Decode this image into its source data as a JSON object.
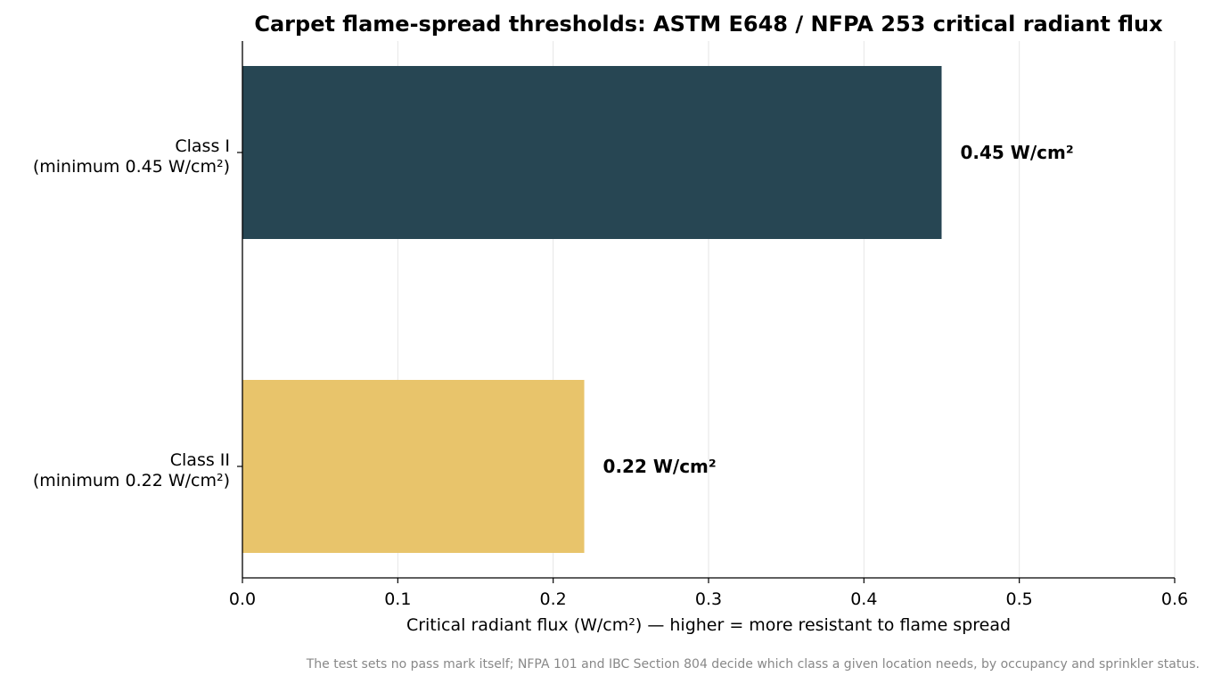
{
  "chart_data": {
    "type": "bar",
    "orientation": "horizontal",
    "title": "Carpet flame-spread thresholds: ASTM E648 / NFPA 253 critical radiant flux",
    "xlabel": "Critical radiant flux (W/cm²)  —  higher = more resistant to flame spread",
    "ylabel": "",
    "xlim": [
      0,
      0.6
    ],
    "xticks": [
      "0.0",
      "0.1",
      "0.2",
      "0.3",
      "0.4",
      "0.5",
      "0.6"
    ],
    "grid": "vertical",
    "categories": [
      [
        "Class I",
        "(minimum 0.45 W/cm²)"
      ],
      [
        "Class II",
        "(minimum 0.22 W/cm²)"
      ]
    ],
    "values": [
      0.45,
      0.22
    ],
    "data_labels": [
      "0.45 W/cm²",
      "0.22 W/cm²"
    ],
    "colors": [
      "#274653",
      "#E8C46B"
    ],
    "footnote": "The test sets no pass mark itself; NFPA 101 and IBC Section 804 decide which class a given location needs, by occupancy and sprinkler status."
  }
}
